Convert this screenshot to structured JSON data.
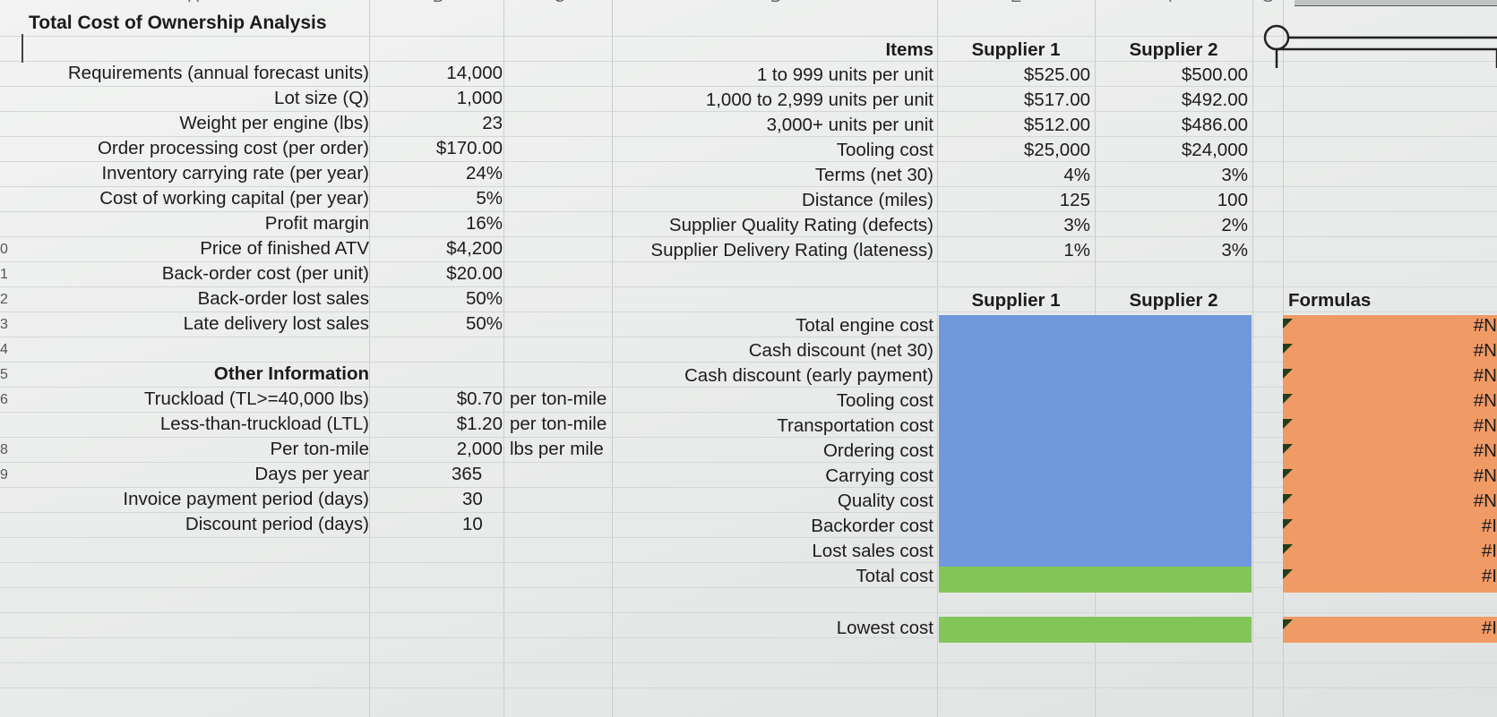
{
  "title": "Total Cost of Ownership Analysis",
  "col_letters": [
    "A",
    "B",
    "C",
    "D",
    "E",
    "F",
    "G"
  ],
  "left_block": {
    "rows": [
      {
        "label": "Requirements (annual forecast units)",
        "value": "14,000"
      },
      {
        "label": "Lot size (Q)",
        "value": "1,000"
      },
      {
        "label": "Weight per engine (lbs)",
        "value": "23"
      },
      {
        "label": "Order processing cost (per order)",
        "value": "$170.00"
      },
      {
        "label": "Inventory carrying rate (per year)",
        "value": "24%"
      },
      {
        "label": "Cost of working capital (per year)",
        "value": "5%"
      },
      {
        "label": "Profit margin",
        "value": "16%"
      },
      {
        "label": "Price of finished ATV",
        "value": "$4,200"
      },
      {
        "label": "Back-order cost (per unit)",
        "value": "$20.00"
      },
      {
        "label": "Back-order lost sales",
        "value": "50%"
      },
      {
        "label": "Late delivery lost sales",
        "value": "50%"
      }
    ],
    "other_header": "Other Information",
    "other_rows": [
      {
        "label": "Truckload (TL>=40,000 lbs)",
        "value": "$0.70",
        "unit": "per ton-mile"
      },
      {
        "label": "Less-than-truckload (LTL)",
        "value": "$1.20",
        "unit": "per ton-mile"
      },
      {
        "label": "Per ton-mile",
        "value": "2,000",
        "unit": "lbs per mile"
      },
      {
        "label": "Days per year",
        "value": "365",
        "unit": ""
      },
      {
        "label": "Invoice payment period (days)",
        "value": "30",
        "unit": ""
      },
      {
        "label": "Discount period (days)",
        "value": "10",
        "unit": ""
      }
    ]
  },
  "supplier_table": {
    "header_items": "Items",
    "supplier1": "Supplier 1",
    "supplier2": "Supplier 2",
    "rows": [
      {
        "item": "1 to 999 units per unit",
        "s1": "$525.00",
        "s2": "$500.00"
      },
      {
        "item": "1,000 to 2,999 units per unit",
        "s1": "$517.00",
        "s2": "$492.00"
      },
      {
        "item": "3,000+ units per unit",
        "s1": "$512.00",
        "s2": "$486.00"
      },
      {
        "item": "Tooling cost",
        "s1": "$25,000",
        "s2": "$24,000"
      },
      {
        "item": "Terms (net 30)",
        "s1": "4%",
        "s2": "3%"
      },
      {
        "item": "Distance (miles)",
        "s1": "125",
        "s2": "100"
      },
      {
        "item": "Supplier Quality Rating (defects)",
        "s1": "3%",
        "s2": "2%"
      },
      {
        "item": "Supplier Delivery Rating (lateness)",
        "s1": "1%",
        "s2": "3%"
      }
    ]
  },
  "cost_table": {
    "supplier1": "Supplier 1",
    "supplier2": "Supplier 2",
    "formulas_header": "Formulas",
    "rows": [
      "Total engine cost",
      "Cash discount (net 30)",
      "Cash discount (early payment)",
      "Tooling cost",
      "Transportation cost",
      "Ordering cost",
      "Carrying cost",
      "Quality cost",
      "Backorder cost",
      "Lost sales cost",
      "Total cost"
    ],
    "lowest_label": "Lowest cost",
    "error_text": "#N",
    "error_text_alt": "#I"
  },
  "colors": {
    "blue": "#6f99dc",
    "green": "#84c55a",
    "orange": "#f09a66"
  }
}
